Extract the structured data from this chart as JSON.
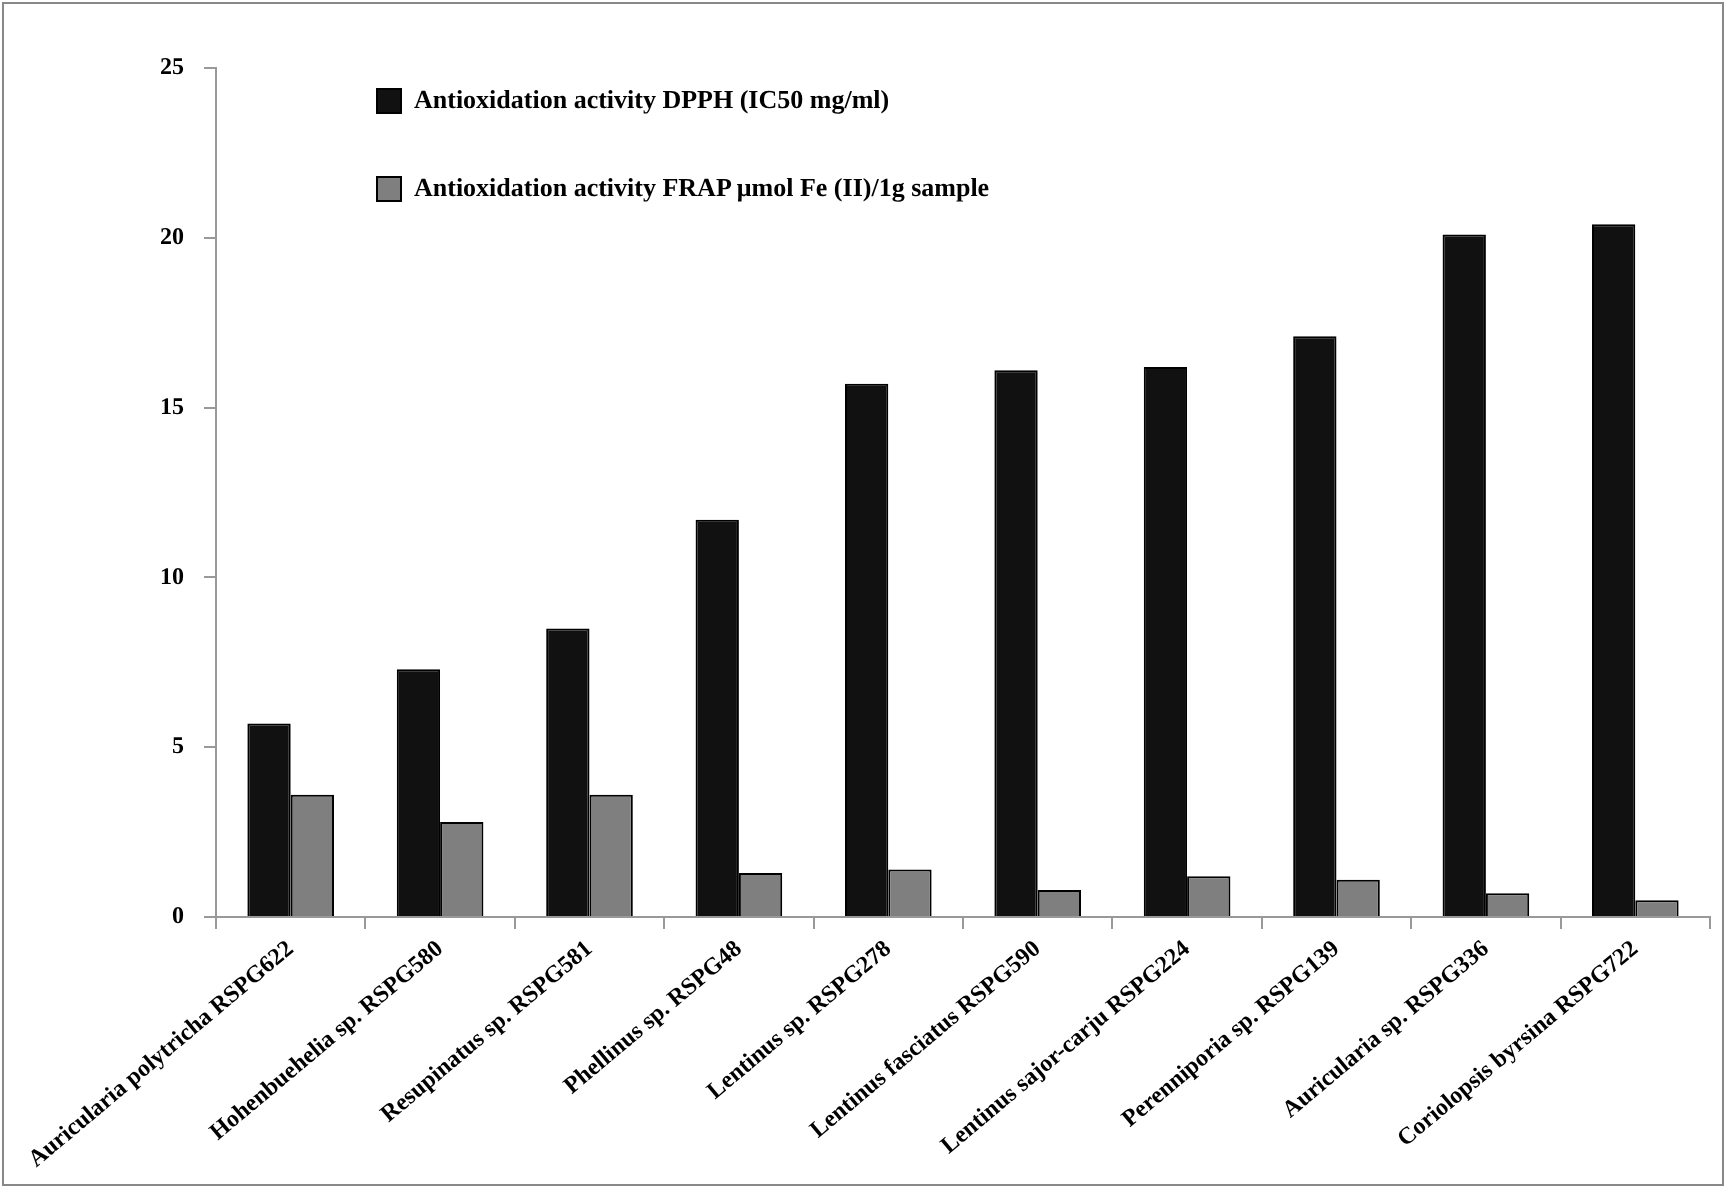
{
  "chart_data": {
    "type": "bar",
    "categories": [
      "Auricularia polytricha RSPG622",
      "Hohenbuehelia sp. RSPG580",
      "Resupinatus sp. RSPG581",
      "Phellinus sp. RSPG48",
      "Lentinus sp. RSPG278",
      "Lentinus fasciatus RSPG590",
      "Lentinus sajor-carju RSPG224",
      "Perenniporia sp. RSPG139",
      "Auricularia sp. RSPG336",
      "Coriolopsis byrsina RSPG722"
    ],
    "series": [
      {
        "name": "Antioxidation activity DPPH (IC50 mg/ml)",
        "color": "#111111",
        "values": [
          5.7,
          7.3,
          8.5,
          11.7,
          15.7,
          16.1,
          16.2,
          17.1,
          20.1,
          20.4
        ]
      },
      {
        "name": "Antioxidation activity FRAP μmol Fe (II)/1g sample",
        "color": "#7f7f7f",
        "values": [
          3.6,
          2.8,
          3.6,
          1.3,
          1.4,
          0.8,
          1.2,
          1.1,
          0.7,
          0.5
        ]
      }
    ],
    "ylim": [
      0,
      25
    ],
    "yticks": [
      0,
      5,
      10,
      15,
      20,
      25
    ],
    "grid": false,
    "legend": "top left"
  }
}
